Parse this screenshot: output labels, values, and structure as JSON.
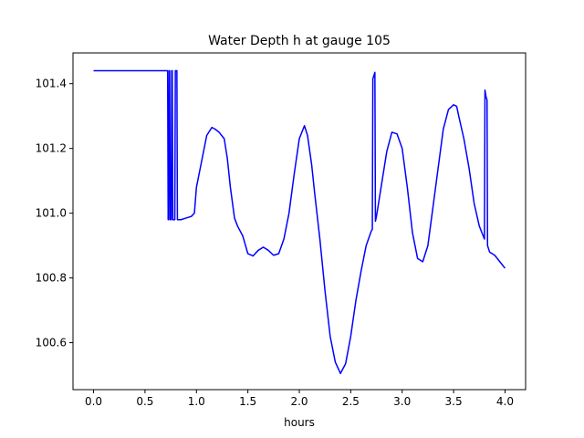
{
  "chart_data": {
    "type": "line",
    "title": "Water Depth h at gauge 105",
    "xlabel": "hours",
    "ylabel": "",
    "xlim": [
      -0.2,
      4.2
    ],
    "ylim": [
      100.455,
      101.495
    ],
    "x_ticks": [
      0.0,
      0.5,
      1.0,
      1.5,
      2.0,
      2.5,
      3.0,
      3.5,
      4.0
    ],
    "x_tick_labels": [
      "0.0",
      "0.5",
      "1.0",
      "1.5",
      "2.0",
      "2.5",
      "3.0",
      "3.5",
      "4.0"
    ],
    "y_ticks": [
      100.6,
      100.8,
      101.0,
      101.2,
      101.4
    ],
    "y_tick_labels": [
      "100.6",
      "100.8",
      "101.0",
      "101.2",
      "101.4"
    ],
    "grid": false,
    "legend": "none",
    "series": [
      {
        "color": "#0000ff",
        "x": [
          0.0,
          0.2,
          0.4,
          0.6,
          0.72,
          0.725,
          0.73,
          0.735,
          0.74,
          0.745,
          0.75,
          0.755,
          0.76,
          0.765,
          0.77,
          0.78,
          0.79,
          0.795,
          0.8,
          0.805,
          0.81,
          0.815,
          0.82,
          0.85,
          0.9,
          0.95,
          0.98,
          1.0,
          1.05,
          1.1,
          1.15,
          1.18,
          1.22,
          1.27,
          1.3,
          1.33,
          1.37,
          1.4,
          1.45,
          1.5,
          1.55,
          1.6,
          1.65,
          1.7,
          1.75,
          1.8,
          1.85,
          1.9,
          1.95,
          2.0,
          2.05,
          2.08,
          2.12,
          2.15,
          2.2,
          2.25,
          2.3,
          2.35,
          2.4,
          2.45,
          2.5,
          2.55,
          2.6,
          2.65,
          2.7,
          2.71,
          2.715,
          2.72,
          2.725,
          2.73,
          2.735,
          2.74,
          2.75,
          2.8,
          2.85,
          2.9,
          2.95,
          3.0,
          3.05,
          3.1,
          3.15,
          3.2,
          3.25,
          3.3,
          3.35,
          3.4,
          3.45,
          3.5,
          3.53,
          3.55,
          3.6,
          3.65,
          3.7,
          3.75,
          3.8,
          3.805,
          3.81,
          3.815,
          3.82,
          3.825,
          3.83,
          3.85,
          3.9,
          3.95,
          4.0
        ],
        "y": [
          101.44,
          101.44,
          101.44,
          101.44,
          101.44,
          100.98,
          100.98,
          101.44,
          101.44,
          100.98,
          100.98,
          100.98,
          101.44,
          101.44,
          100.98,
          100.98,
          100.98,
          101.44,
          101.44,
          101.44,
          101.44,
          100.98,
          100.98,
          100.98,
          100.985,
          100.99,
          101.0,
          101.08,
          101.16,
          101.24,
          101.265,
          101.26,
          101.25,
          101.23,
          101.17,
          101.08,
          100.985,
          100.96,
          100.93,
          100.875,
          100.868,
          100.885,
          100.895,
          100.885,
          100.87,
          100.875,
          100.92,
          101.0,
          101.12,
          101.23,
          101.27,
          101.24,
          101.15,
          101.06,
          100.92,
          100.76,
          100.62,
          100.54,
          100.505,
          100.535,
          100.62,
          100.73,
          100.82,
          100.9,
          100.945,
          100.95,
          101.415,
          101.42,
          101.425,
          101.43,
          101.435,
          100.975,
          100.99,
          101.09,
          101.19,
          101.25,
          101.245,
          101.2,
          101.08,
          100.94,
          100.86,
          100.85,
          100.9,
          101.02,
          101.14,
          101.26,
          101.32,
          101.335,
          101.33,
          101.3,
          101.23,
          101.14,
          101.03,
          100.96,
          100.92,
          101.38,
          101.37,
          101.36,
          101.355,
          101.35,
          100.9,
          100.88,
          100.87,
          100.85,
          100.83
        ]
      }
    ]
  }
}
